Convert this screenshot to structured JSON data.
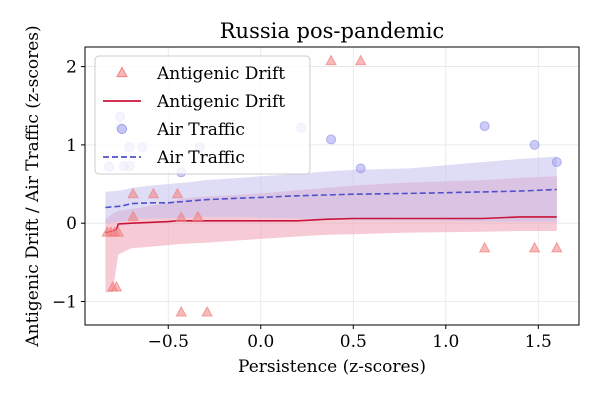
{
  "chart_data": {
    "type": "scatter",
    "title": "Russia pos-pandemic",
    "xlabel": "Persistence (z-scores)",
    "ylabel": "Antigenic Drift / Air Traffic (z-scores)",
    "xlim": [
      -0.95,
      1.72
    ],
    "ylim": [
      -1.3,
      2.25
    ],
    "xticks": [
      -0.5,
      0.0,
      0.5,
      1.0,
      1.5
    ],
    "xtick_labels": [
      "−0.5",
      "0.0",
      "0.5",
      "1.0",
      "1.5"
    ],
    "yticks": [
      -1,
      0,
      1,
      2
    ],
    "ytick_labels": [
      "−1",
      "0",
      "1",
      "2"
    ],
    "grid": true,
    "legend": {
      "position": "top-left",
      "entries": [
        {
          "label": "Antigenic Drift",
          "kind": "scatter-triangle",
          "color": "#f08080"
        },
        {
          "label": "Antigenic Drift",
          "kind": "line-solid",
          "color": "#c8143c"
        },
        {
          "label": "Air Traffic",
          "kind": "scatter-circle",
          "color": "#9999ee"
        },
        {
          "label": "Air Traffic",
          "kind": "line-dashed",
          "color": "#5050cc"
        }
      ]
    },
    "series": [
      {
        "name": "Antigenic Drift",
        "kind": "scatter",
        "marker": "triangle",
        "color": "#f08080",
        "points": [
          [
            -0.83,
            -0.12
          ],
          [
            -0.81,
            -0.12
          ],
          [
            -0.79,
            -0.12
          ],
          [
            -0.77,
            -0.12
          ],
          [
            -0.8,
            -0.82
          ],
          [
            -0.78,
            -0.82
          ],
          [
            -0.69,
            0.08
          ],
          [
            -0.69,
            0.37
          ],
          [
            -0.58,
            0.37
          ],
          [
            -0.45,
            0.37
          ],
          [
            -0.43,
            0.07
          ],
          [
            -0.34,
            0.08
          ],
          [
            -0.43,
            -1.14
          ],
          [
            -0.29,
            -1.14
          ],
          [
            0.38,
            2.07
          ],
          [
            0.54,
            2.07
          ],
          [
            1.21,
            -0.32
          ],
          [
            1.48,
            -0.32
          ],
          [
            1.6,
            -0.32
          ]
        ]
      },
      {
        "name": "Antigenic Drift",
        "kind": "line",
        "style": "solid",
        "color": "#c8143c",
        "band_color": "#f0a0b4",
        "x": [
          -0.84,
          -0.8,
          -0.78,
          -0.77,
          -0.7,
          -0.6,
          -0.5,
          -0.45,
          -0.4,
          -0.3,
          0.0,
          0.2,
          0.35,
          0.5,
          0.8,
          1.2,
          1.4,
          1.6
        ],
        "y": [
          -0.12,
          -0.1,
          -0.08,
          -0.01,
          0.0,
          0.01,
          0.02,
          0.03,
          0.03,
          0.03,
          0.03,
          0.03,
          0.05,
          0.06,
          0.06,
          0.06,
          0.08,
          0.08
        ],
        "lower": [
          -0.88,
          -0.88,
          -0.55,
          -0.4,
          -0.32,
          -0.3,
          -0.28,
          -0.27,
          -0.26,
          -0.25,
          -0.2,
          -0.17,
          -0.15,
          -0.14,
          -0.12,
          -0.11,
          -0.1,
          -0.1
        ],
        "upper": [
          0.05,
          0.12,
          0.15,
          0.16,
          0.18,
          0.22,
          0.26,
          0.3,
          0.32,
          0.34,
          0.38,
          0.42,
          0.45,
          0.48,
          0.52,
          0.55,
          0.58,
          0.6
        ]
      },
      {
        "name": "Air Traffic",
        "kind": "scatter",
        "marker": "circle",
        "color": "#9999ee",
        "points": [
          [
            -0.82,
            0.72
          ],
          [
            -0.74,
            0.73
          ],
          [
            -0.71,
            0.73
          ],
          [
            -0.76,
            1.22
          ],
          [
            -0.76,
            1.36
          ],
          [
            -0.71,
            0.97
          ],
          [
            -0.64,
            0.97
          ],
          [
            -0.43,
            0.65
          ],
          [
            -0.33,
            0.97
          ],
          [
            0.22,
            1.22
          ],
          [
            0.38,
            1.07
          ],
          [
            0.54,
            0.7
          ],
          [
            1.21,
            1.24
          ],
          [
            1.48,
            1.0
          ],
          [
            1.6,
            0.78
          ]
        ]
      },
      {
        "name": "Air Traffic",
        "kind": "line",
        "style": "dashed",
        "color": "#5050cc",
        "band_color": "#c4c0ee",
        "x": [
          -0.84,
          -0.75,
          -0.7,
          -0.6,
          -0.5,
          -0.4,
          -0.3,
          -0.1,
          0.0,
          0.2,
          0.35,
          0.5,
          0.8,
          1.0,
          1.2,
          1.4,
          1.6
        ],
        "y": [
          0.2,
          0.22,
          0.25,
          0.26,
          0.26,
          0.28,
          0.3,
          0.32,
          0.33,
          0.35,
          0.36,
          0.37,
          0.38,
          0.39,
          0.4,
          0.41,
          0.43
        ],
        "lower": [
          0.0,
          0.02,
          0.05,
          0.06,
          0.06,
          0.07,
          0.08,
          0.08,
          0.07,
          0.06,
          0.05,
          0.04,
          0.03,
          0.03,
          0.02,
          0.02,
          0.02
        ],
        "upper": [
          0.4,
          0.42,
          0.45,
          0.48,
          0.5,
          0.52,
          0.55,
          0.58,
          0.6,
          0.63,
          0.66,
          0.68,
          0.7,
          0.74,
          0.78,
          0.82,
          0.85
        ]
      }
    ]
  }
}
